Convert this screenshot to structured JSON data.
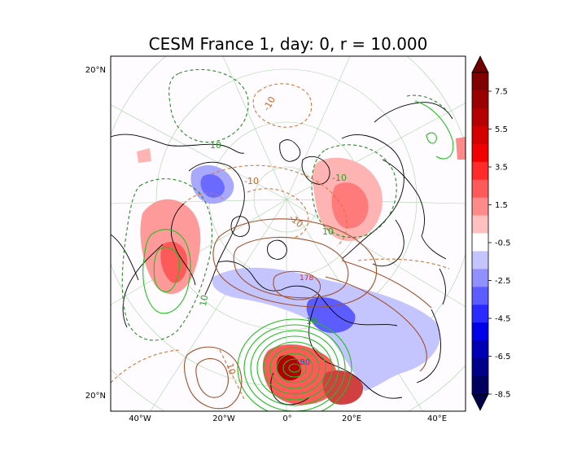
{
  "title": "CESM France 1, day: 0, r = 10.000",
  "map": {
    "lat_labels": [
      "20°N",
      "20°N"
    ],
    "lon_labels": [
      "40°W",
      "20°W",
      "0°",
      "20°E",
      "40°E"
    ],
    "contour_labels": [
      {
        "text": "10",
        "color": "#2ca02c"
      },
      {
        "text": "-10",
        "color": "#c8662a"
      },
      {
        "text": "-10",
        "color": "#c8662a"
      },
      {
        "text": "-10",
        "color": "#2ca02c"
      },
      {
        "text": "10",
        "color": "#2ca02c"
      },
      {
        "text": "-10",
        "color": "#c8662a"
      },
      {
        "text": "178",
        "color": "#d62728"
      },
      {
        "text": "10",
        "color": "#2ca02c"
      },
      {
        "text": "180",
        "color": "#1f4fff"
      },
      {
        "text": "10",
        "color": "#c8662a"
      },
      {
        "text": "10",
        "color": "#2ca02c"
      }
    ]
  },
  "colorbar": {
    "tick_labels": [
      "7.5",
      "5.5",
      "3.5",
      "1.5",
      "-0.5",
      "-2.5",
      "-4.5",
      "-6.5",
      "-8.5"
    ],
    "colors": [
      "#800000",
      "#9a0000",
      "#b40000",
      "#d40000",
      "#f00000",
      "#ff2a2a",
      "#ff5a5a",
      "#ff8a8a",
      "#ffc0c0",
      "#ffffff",
      "#c4c4ff",
      "#9090ff",
      "#5c5cff",
      "#2a2aff",
      "#0000e6",
      "#0000b4",
      "#000088",
      "#000060"
    ],
    "extend_top_color": "#6e0000",
    "extend_bottom_color": "#000048"
  }
}
